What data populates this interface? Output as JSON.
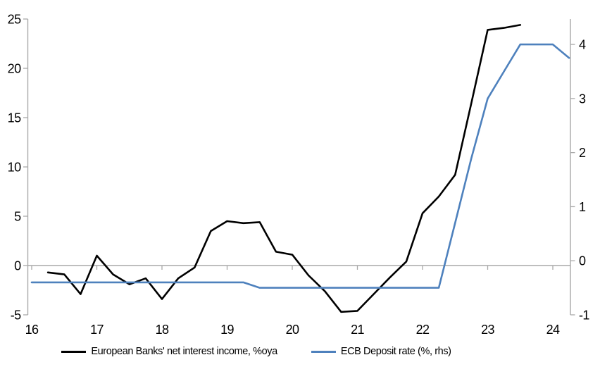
{
  "chart_data": {
    "type": "line",
    "title": "",
    "xlabel": "",
    "ylabel_left": "",
    "ylabel_right": "",
    "grid": "zero-baseline-only",
    "legend_position": "bottom-center",
    "x_axis": {
      "min": 16,
      "max": 24.3,
      "ticks": [
        16,
        17,
        18,
        19,
        20,
        21,
        22,
        23,
        24
      ]
    },
    "y_left_axis": {
      "min": -5,
      "max": 25,
      "ticks": [
        -5,
        0,
        5,
        10,
        15,
        20,
        25
      ]
    },
    "y_right_axis": {
      "min": -1,
      "max": 4.47,
      "ticks": [
        -1,
        0,
        1,
        2,
        3,
        4
      ]
    },
    "series": [
      {
        "name": "European Banks' net interest income, %oya",
        "axis": "left",
        "color": "#000000",
        "x": [
          16.25,
          16.5,
          16.75,
          17,
          17.25,
          17.5,
          17.75,
          18,
          18.25,
          18.5,
          18.75,
          19,
          19.25,
          19.5,
          19.75,
          20,
          20.25,
          20.5,
          20.75,
          21,
          21.25,
          21.5,
          21.75,
          22,
          22.25,
          22.5,
          22.75,
          23,
          23.25,
          23.5
        ],
        "values": [
          -0.7,
          -0.9,
          -2.9,
          1.0,
          -0.9,
          -1.9,
          -1.3,
          -3.4,
          -1.3,
          -0.2,
          3.5,
          4.5,
          4.3,
          4.4,
          1.4,
          1.1,
          -1.0,
          -2.6,
          -4.7,
          -4.6,
          -2.9,
          -1.2,
          0.4,
          5.3,
          7.0,
          9.2,
          16.5,
          23.9,
          24.1,
          24.4
        ]
      },
      {
        "name": "ECB Deposit rate (%, rhs)",
        "axis": "right",
        "color": "#4e81bd",
        "x": [
          16,
          16.25,
          16.5,
          16.75,
          17,
          17.25,
          17.5,
          17.75,
          18,
          18.25,
          18.5,
          18.75,
          19,
          19.25,
          19.5,
          19.75,
          20,
          20.25,
          20.5,
          20.75,
          21,
          21.25,
          21.5,
          21.75,
          22,
          22.25,
          22.5,
          22.75,
          23,
          23.25,
          23.5,
          23.75,
          24,
          24.25
        ],
        "values": [
          -0.4,
          -0.4,
          -0.4,
          -0.4,
          -0.4,
          -0.4,
          -0.4,
          -0.4,
          -0.4,
          -0.4,
          -0.4,
          -0.4,
          -0.4,
          -0.4,
          -0.5,
          -0.5,
          -0.5,
          -0.5,
          -0.5,
          -0.5,
          -0.5,
          -0.5,
          -0.5,
          -0.5,
          -0.5,
          -0.5,
          0.7,
          1.9,
          3.0,
          3.5,
          4.0,
          4.0,
          4.0,
          3.75
        ]
      }
    ]
  },
  "colors": {
    "background": "#ffffff",
    "axis": "#a9a9a9",
    "tick_label": "#000000",
    "series_nii": "#000000",
    "series_ecb": "#4e81bd"
  }
}
